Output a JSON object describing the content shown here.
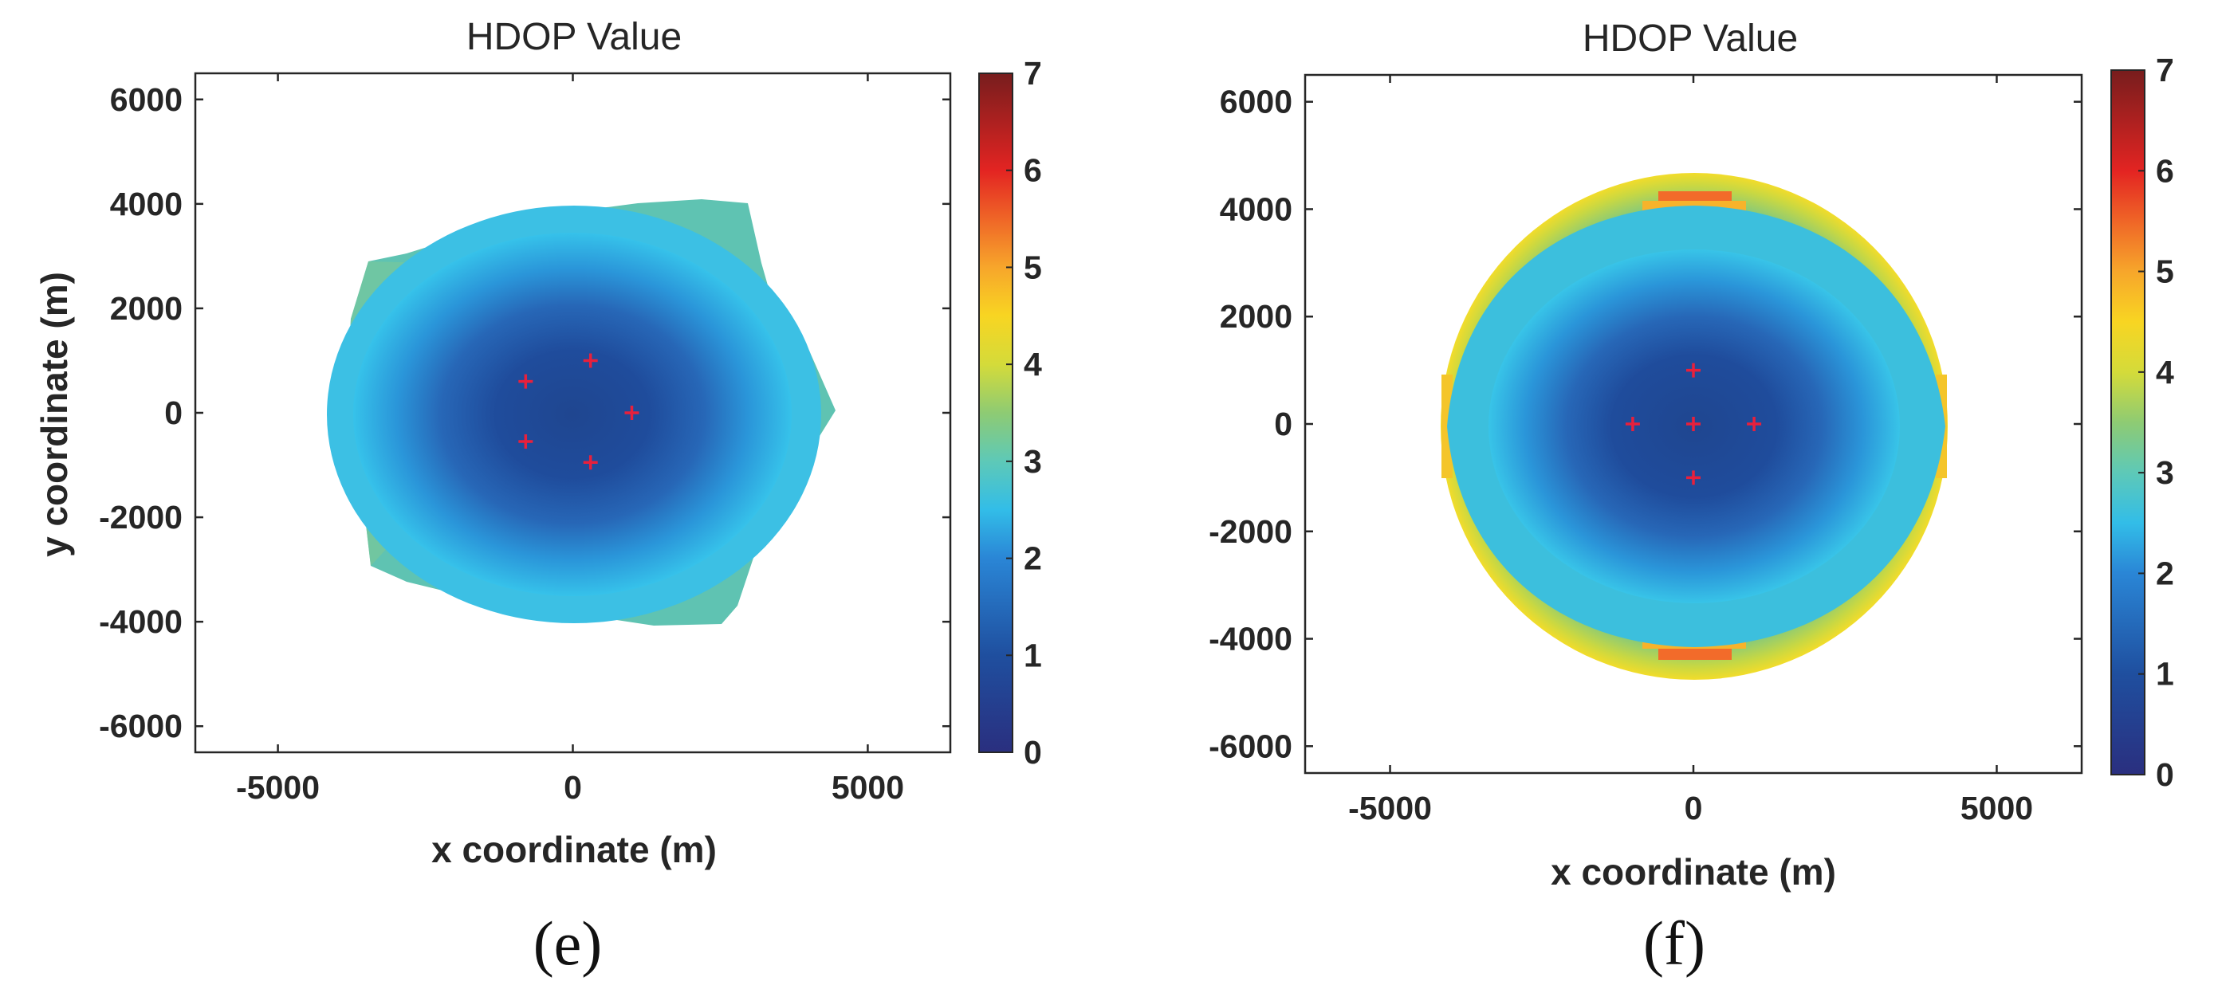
{
  "chart_data": [
    {
      "type": "heatmap",
      "panel_label": "(e)",
      "title": "HDOP Value",
      "xlabel": "x coordinate (m)",
      "ylabel": "y coordinate (m)",
      "xlim": [
        -6400,
        6400
      ],
      "ylim": [
        -6500,
        6500
      ],
      "xticks": [
        -5000,
        0,
        5000
      ],
      "xtick_labels": [
        "-5000",
        "0",
        "5000"
      ],
      "yticks": [
        6000,
        4000,
        2000,
        0,
        -2000,
        -4000,
        -6000
      ],
      "ytick_labels": [
        "6000",
        "4000",
        "2000",
        "0",
        "-2000",
        "-4000",
        "-6000"
      ],
      "colorbar": {
        "min": 0,
        "max": 7,
        "ticks": [
          0,
          1,
          2,
          3,
          4,
          5,
          6,
          7
        ],
        "tick_labels": [
          "0",
          "1",
          "2",
          "3",
          "4",
          "5",
          "6",
          "7"
        ],
        "colormap": "jet"
      },
      "anchors": [
        [
          300,
          1000
        ],
        [
          -800,
          600
        ],
        [
          1000,
          0
        ],
        [
          -800,
          -550
        ],
        [
          300,
          -950
        ]
      ],
      "anchor_color": "#e8203c",
      "coverage_shape": "irregular pentagon",
      "coverage_boundary_hdop": 3.2,
      "min_hdop_center": 0.4
    },
    {
      "type": "heatmap",
      "panel_label": "(f)",
      "title": "HDOP Value",
      "xlabel": "x coordinate (m)",
      "ylabel": "",
      "xlim": [
        -6400,
        6400
      ],
      "ylim": [
        -6500,
        6500
      ],
      "xticks": [
        -5000,
        0,
        5000
      ],
      "xtick_labels": [
        "-5000",
        "0",
        "5000"
      ],
      "yticks": [
        6000,
        4000,
        2000,
        0,
        -2000,
        -4000,
        -6000
      ],
      "ytick_labels": [
        "6000",
        "4000",
        "2000",
        "0",
        "-2000",
        "-4000",
        "-6000"
      ],
      "colorbar": {
        "min": 0,
        "max": 7,
        "ticks": [
          0,
          1,
          2,
          3,
          4,
          5,
          6,
          7
        ],
        "tick_labels": [
          "0",
          "1",
          "2",
          "3",
          "4",
          "5",
          "6",
          "7"
        ],
        "colormap": "jet"
      },
      "anchors": [
        [
          0,
          1000
        ],
        [
          -1000,
          0
        ],
        [
          0,
          0
        ],
        [
          1000,
          0
        ],
        [
          0,
          -1000
        ]
      ],
      "anchor_color": "#e8203c",
      "coverage_shape": "circle",
      "coverage_radius_m": 4200,
      "boundary_hdop_max": 5.8,
      "min_hdop_center": 0.4
    }
  ]
}
